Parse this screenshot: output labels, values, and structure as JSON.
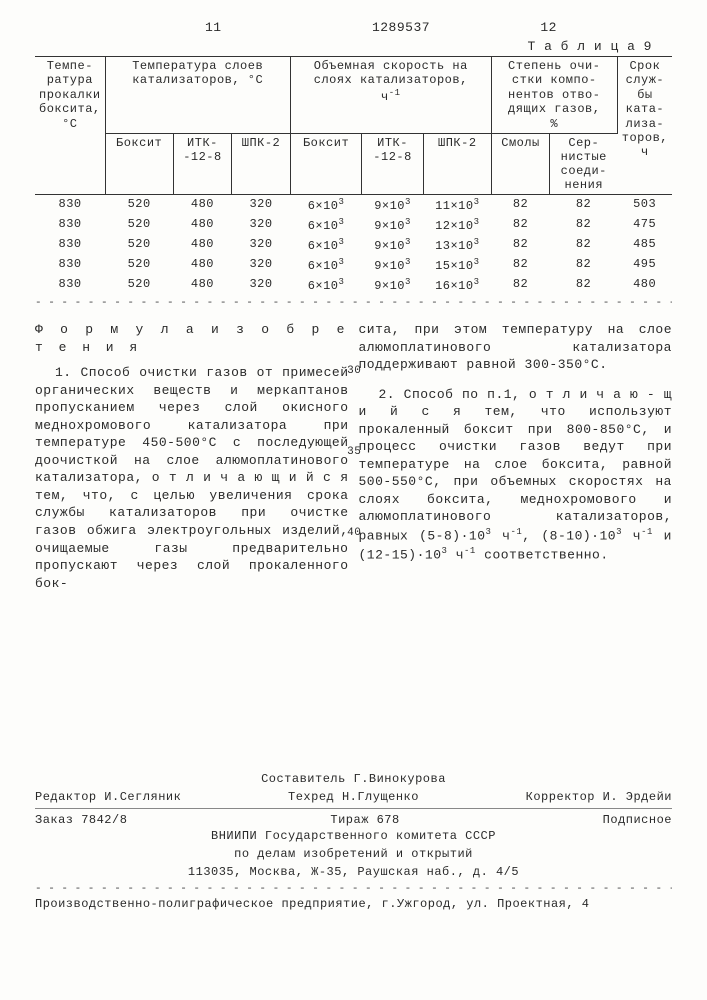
{
  "header": {
    "page_left": "11",
    "doc_number": "1289537",
    "page_right": "12",
    "table_label": "Т а б л и ц а  9"
  },
  "table": {
    "headers_top": {
      "c1": "Темпе-\nратура\nпрокалки\nбоксита,\n°С",
      "c2": "Температура слоев\nкатализаторов, °С",
      "c3": "Объемная скорость на\nслоях катализаторов,\nч⁻¹",
      "c4": "Степень очи-\nстки компо-\nнентов отво-\nдящих газов,\n%",
      "c5": "Срок\nслуж-\nбы\nката-\nлиза-\nторов,\nч"
    },
    "headers_sub": {
      "s1": "Боксит",
      "s2": "ИТК-\n-12-8",
      "s3": "ШПК-2",
      "s4": "Боксит",
      "s5": "ИТК-\n-12-8",
      "s6": "ШПК-2",
      "s7": "Смолы",
      "s8": "Сер-\nнистые\nсоеди-\nнения"
    },
    "rows": [
      {
        "v": [
          "830",
          "520",
          "480",
          "320",
          "6×10³",
          "9×10³",
          "11×10³",
          "82",
          "82",
          "503"
        ]
      },
      {
        "v": [
          "830",
          "520",
          "480",
          "320",
          "6×10³",
          "9×10³",
          "12×10³",
          "82",
          "82",
          "475"
        ]
      },
      {
        "v": [
          "830",
          "520",
          "480",
          "320",
          "6×10³",
          "9×10³",
          "13×10³",
          "82",
          "82",
          "485"
        ]
      },
      {
        "v": [
          "830",
          "520",
          "480",
          "320",
          "6×10³",
          "9×10³",
          "15×10³",
          "82",
          "82",
          "495"
        ]
      },
      {
        "v": [
          "830",
          "520",
          "480",
          "320",
          "6×10³",
          "9×10³",
          "16×10³",
          "82",
          "82",
          "480"
        ]
      }
    ]
  },
  "formula_title": "Ф о р м у л а   и з о б р е т е н и я",
  "claims": {
    "left_p1": "1. Способ очистки газов от примесей органических веществ и меркаптанов пропусканием через слой окисного меднохромового катализатора при температуре 450-500°С с последующей доочисткой на слое алюмоплатинового катализатора, о т л и ч а ю щ и й с я тем, что, с целью увеличения срока службы катализаторов при очистке газов обжига электроугольных изделий, очищаемые газы предварительно пропускают через слой прокаленного бок-",
    "right_p1": "сита, при этом температуру на слое алюмоплатинового катализатора поддерживают равной 300-350°С.",
    "right_p2": "2. Способ по п.1, о т л и ч а ю - щ и й с я  тем, что используют прокаленный боксит при 800-850°С, и процесс очистки газов ведут при температуре на слое боксита, равной 500-550°С, при объемных скоростях на слоях боксита, меднохромового и алюмоплатинового катализаторов, равных (5-8)·10³ ч⁻¹, (8-10)·10³ ч⁻¹ и (12-15)·10³ ч⁻¹ соответственно."
  },
  "line_numbers": {
    "n30": "30",
    "n35": "35",
    "n40": "40"
  },
  "footer": {
    "compiler": "Составитель Г.Винокурова",
    "editor": "Редактор И.Сегляник",
    "techred": "Техред Н.Глущенко",
    "corrector": "Корректор И. Эрдейи",
    "order": "Заказ 7842/8",
    "tirage": "Тираж  678",
    "subscribe": "Подписное",
    "org1": "ВНИИПИ Государственного комитета СССР",
    "org2": "по делам изобретений и открытий",
    "addr": "113035, Москва, Ж-35, Раушская наб., д. 4/5",
    "print": "Производственно-полиграфическое предприятие, г.Ужгород, ул. Проектная, 4"
  }
}
